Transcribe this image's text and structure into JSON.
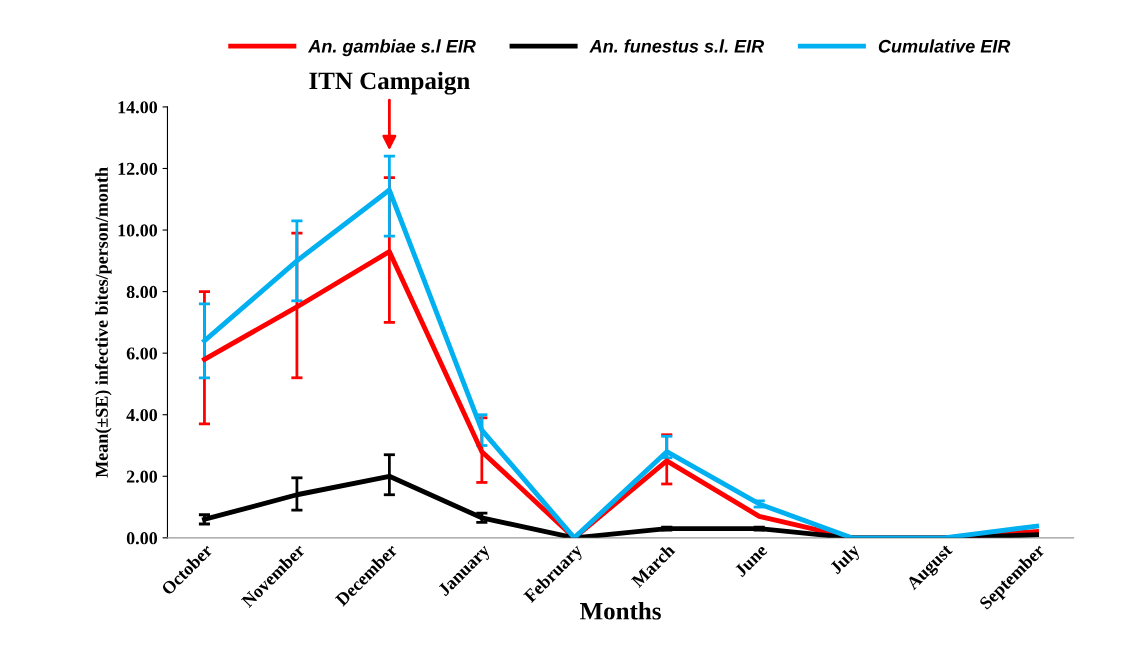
{
  "chart_data": {
    "type": "line",
    "xlabel": "Months",
    "ylabel": "Mean(±SE) infective bites/person/month",
    "categories": [
      "October",
      "November",
      "December",
      "January",
      "February",
      "March",
      "June",
      "July",
      "August",
      "September"
    ],
    "series": [
      {
        "name": "An. gambiae s.l EIR",
        "color": "#ff0000",
        "values": [
          5.8,
          7.5,
          9.3,
          2.8,
          0,
          2.5,
          0.7,
          0,
          0,
          0.2
        ],
        "errors": [
          [
            3.7,
            8.0
          ],
          [
            5.2,
            9.9
          ],
          [
            7.0,
            11.7
          ],
          [
            1.8,
            3.9
          ],
          null,
          [
            1.75,
            3.35
          ],
          null,
          null,
          null,
          null
        ]
      },
      {
        "name": "An. funestus s.l. EIR",
        "color": "#000000",
        "values": [
          0.6,
          1.4,
          2.0,
          0.65,
          0,
          0.3,
          0.3,
          0,
          0,
          0.1
        ],
        "errors": [
          [
            0.45,
            0.75
          ],
          [
            0.9,
            1.95
          ],
          [
            1.4,
            2.7
          ],
          [
            0.5,
            0.8
          ],
          null,
          [
            0.25,
            0.35
          ],
          [
            0.25,
            0.35
          ],
          null,
          null,
          null
        ]
      },
      {
        "name": "Cumulative EIR",
        "color": "#00b0f0",
        "values": [
          6.4,
          9.0,
          11.3,
          3.5,
          0,
          2.8,
          1.1,
          0,
          0,
          0.38
        ],
        "errors": [
          [
            5.2,
            7.6
          ],
          [
            7.7,
            10.3
          ],
          [
            9.8,
            12.4
          ],
          [
            3.0,
            4.0
          ],
          null,
          [
            2.6,
            3.3
          ],
          [
            1.0,
            1.2
          ],
          null,
          null,
          null
        ]
      }
    ],
    "ylim": [
      0,
      14
    ],
    "yticks": [
      {
        "value": 0,
        "label": "0.00"
      },
      {
        "value": 2,
        "label": "2.00"
      },
      {
        "value": 4,
        "label": "4.00"
      },
      {
        "value": 6,
        "label": "6.00"
      },
      {
        "value": 8,
        "label": "8.00"
      },
      {
        "value": 10,
        "label": "10.00"
      },
      {
        "value": 12,
        "label": "12.00"
      },
      {
        "value": 14,
        "label": "14.00"
      }
    ],
    "annotations": [
      {
        "text": "ITN Campaign",
        "x": "December",
        "y": 12.5
      }
    ],
    "legend": "top",
    "grid": false,
    "marker": "none",
    "line_style": "solid"
  }
}
